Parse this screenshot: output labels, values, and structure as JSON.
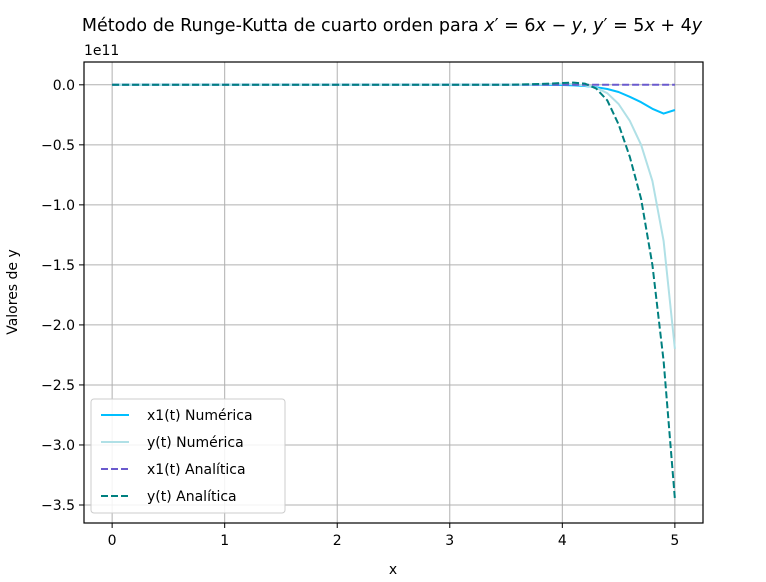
{
  "chart_data": {
    "type": "line",
    "title_prefix": "Método de Runge-Kutta de cuarto orden para ",
    "title_math": [
      {
        "t": "x",
        "i": true
      },
      {
        "t": "′",
        "i": false
      },
      {
        "t": " = 6",
        "i": false
      },
      {
        "t": "x",
        "i": true
      },
      {
        "t": " − ",
        "i": false
      },
      {
        "t": "y",
        "i": true
      },
      {
        "t": ", ",
        "i": false
      },
      {
        "t": "y",
        "i": true
      },
      {
        "t": "′",
        "i": false
      },
      {
        "t": " = 5",
        "i": false
      },
      {
        "t": "x",
        "i": true
      },
      {
        "t": " + 4",
        "i": false
      },
      {
        "t": "y",
        "i": true
      }
    ],
    "xlabel": "x",
    "ylabel": "Valores de y",
    "y_offset_label": "1e11",
    "xlim": [
      -0.25,
      5.25
    ],
    "ylim": [
      -3.65,
      0.19
    ],
    "xticks": [
      0,
      1,
      2,
      3,
      4,
      5
    ],
    "xtick_labels": [
      "0",
      "1",
      "2",
      "3",
      "4",
      "5"
    ],
    "yticks": [
      0.0,
      -0.5,
      -1.0,
      -1.5,
      -2.0,
      -2.5,
      -3.0,
      -3.5
    ],
    "ytick_labels": [
      "0.0",
      "−0.5",
      "−1.0",
      "−1.5",
      "−2.0",
      "−2.5",
      "−3.0",
      "−3.5"
    ],
    "grid": true,
    "legend_position": "lower-left",
    "series": [
      {
        "name": "x1(t) Numérica",
        "color": "#00bfff",
        "dash": "solid",
        "x": [
          0,
          0.5,
          1,
          1.5,
          2,
          2.5,
          3,
          3.5,
          3.8,
          4.0,
          4.1,
          4.2,
          4.3,
          4.4,
          4.5,
          4.6,
          4.7,
          4.8,
          4.9,
          5.0
        ],
        "y": [
          0,
          0,
          0,
          0,
          0,
          0,
          0,
          0,
          0,
          -0.002,
          -0.005,
          -0.01,
          -0.02,
          -0.035,
          -0.06,
          -0.1,
          -0.145,
          -0.2,
          -0.24,
          -0.21
        ]
      },
      {
        "name": "y(t) Numérica",
        "color": "#b0e0e6",
        "dash": "solid",
        "x": [
          0,
          0.5,
          1,
          1.5,
          2,
          2.5,
          3,
          3.5,
          3.8,
          4.0,
          4.1,
          4.2,
          4.3,
          4.4,
          4.5,
          4.6,
          4.7,
          4.8,
          4.9,
          5.0
        ],
        "y": [
          0,
          0,
          0,
          0,
          0,
          0,
          0,
          0,
          0.005,
          0.01,
          0.005,
          -0.005,
          -0.025,
          -0.07,
          -0.16,
          -0.3,
          -0.5,
          -0.8,
          -1.3,
          -2.2
        ]
      },
      {
        "name": "x1(t) Analítica",
        "color": "#6a5acd",
        "dash": "dashed",
        "x": [
          0,
          1,
          2,
          3,
          4,
          4.5,
          5.0
        ],
        "y": [
          0,
          0,
          0,
          0,
          0,
          0,
          0
        ]
      },
      {
        "name": "y(t) Analítica",
        "color": "#008080",
        "dash": "dashed",
        "x": [
          0,
          0.5,
          1,
          1.5,
          2,
          2.5,
          3,
          3.5,
          3.8,
          4.0,
          4.1,
          4.2,
          4.3,
          4.4,
          4.5,
          4.6,
          4.7,
          4.8,
          4.9,
          5.0
        ],
        "y": [
          0,
          0,
          0,
          0,
          0,
          0,
          0,
          0,
          0.007,
          0.015,
          0.018,
          0.01,
          -0.03,
          -0.13,
          -0.33,
          -0.6,
          -0.95,
          -1.5,
          -2.3,
          -3.45
        ]
      }
    ]
  }
}
